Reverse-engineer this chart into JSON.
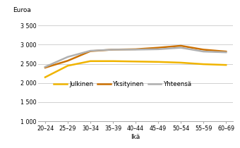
{
  "categories": [
    "20–24",
    "25–29",
    "30–34",
    "35–39",
    "40–44",
    "45–49",
    "50–54",
    "55–59",
    "60–69"
  ],
  "julkinen": [
    2150,
    2450,
    2570,
    2570,
    2560,
    2550,
    2530,
    2490,
    2470
  ],
  "yksityinen": [
    2400,
    2580,
    2830,
    2870,
    2880,
    2920,
    2970,
    2870,
    2820
  ],
  "yhteensa": [
    2420,
    2680,
    2840,
    2870,
    2870,
    2880,
    2920,
    2820,
    2800
  ],
  "colors": {
    "julkinen": "#f0b400",
    "yksityinen": "#cc7000",
    "yhteensa": "#b0b0b0"
  },
  "legend_labels": [
    "Julkinen",
    "Yksityinen",
    "Yhteensä"
  ],
  "ylabel": "Euroa",
  "xlabel": "Ikä",
  "ylim": [
    1000,
    3700
  ],
  "yticks": [
    1000,
    1500,
    2000,
    2500,
    3000,
    3500
  ],
  "ytick_labels": [
    "1 000",
    "1 500",
    "2 000",
    "2 500",
    "3 000",
    "3 500"
  ],
  "grid_color": "#d0d0d0",
  "background_color": "#ffffff"
}
